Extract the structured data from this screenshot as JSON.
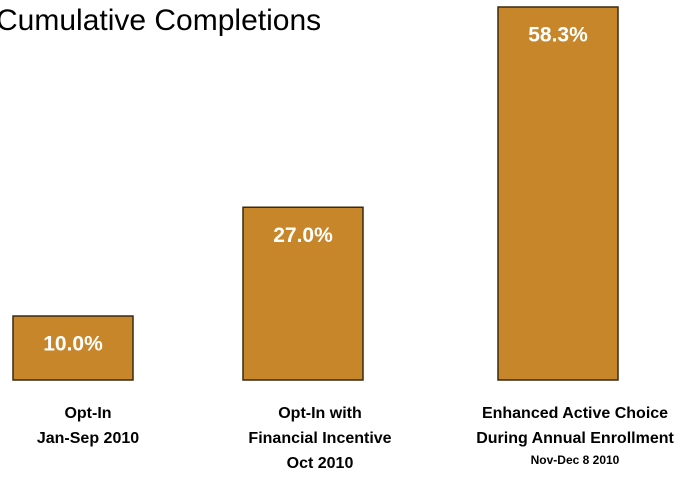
{
  "chart_data": {
    "type": "bar",
    "title": "Cumulative Completions",
    "categories": [
      [
        "Opt-In",
        "Jan-Sep 2010"
      ],
      [
        "Opt-In with",
        "Financial Incentive",
        "Oct 2010"
      ],
      [
        "Enhanced Active Choice",
        "During Annual Enrollment",
        "Nov-Dec 8 2010"
      ]
    ],
    "values": [
      10.0,
      27.0,
      58.3
    ],
    "value_labels": [
      "10.0%",
      "27.0%",
      "58.3%"
    ],
    "color": "#c8862a"
  }
}
